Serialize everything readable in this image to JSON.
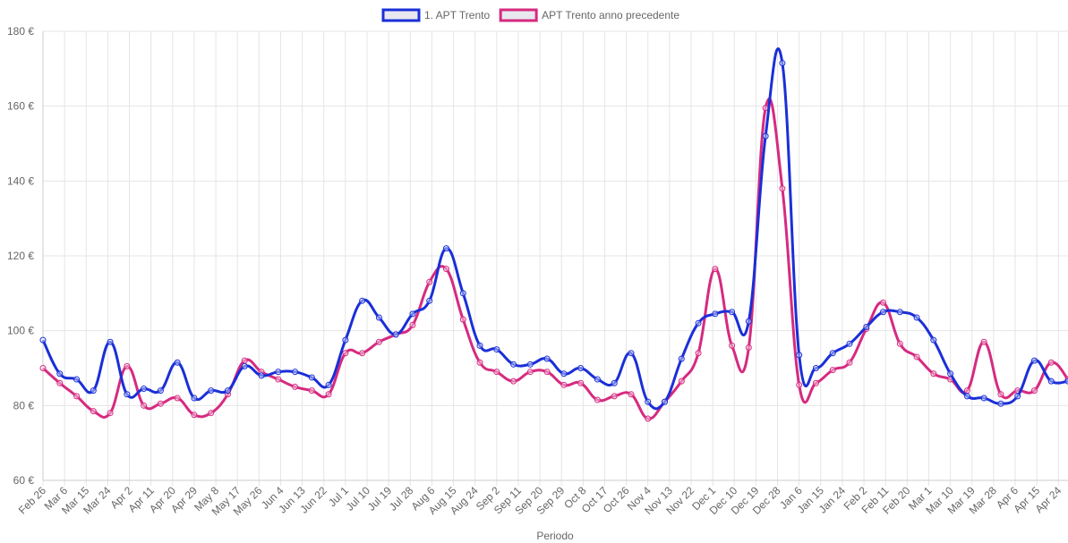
{
  "chart_data": {
    "type": "line",
    "x_label": "Periodo",
    "x": [
      0,
      7,
      14,
      21,
      28,
      35,
      42,
      49,
      56,
      63,
      70,
      77,
      84,
      91,
      98,
      105,
      112,
      119,
      126,
      133,
      140,
      147,
      154,
      161,
      168,
      175,
      182,
      189,
      196,
      203,
      210,
      217,
      224,
      231,
      238,
      245,
      252,
      259,
      266,
      273,
      280,
      287,
      294,
      301,
      308,
      315,
      322,
      329,
      336,
      343,
      350,
      357,
      364,
      371,
      378,
      385,
      392,
      399,
      406,
      413,
      420,
      427
    ],
    "xlim": [
      0,
      427
    ],
    "xticks": [
      {
        "value": 0,
        "label": "Feb 26"
      },
      {
        "value": 9,
        "label": "Mar 6"
      },
      {
        "value": 18,
        "label": "Mar 15"
      },
      {
        "value": 27,
        "label": "Mar 24"
      },
      {
        "value": 36,
        "label": "Apr 2"
      },
      {
        "value": 45,
        "label": "Apr 11"
      },
      {
        "value": 54,
        "label": "Apr 20"
      },
      {
        "value": 63,
        "label": "Apr 29"
      },
      {
        "value": 72,
        "label": "May 8"
      },
      {
        "value": 81,
        "label": "May 17"
      },
      {
        "value": 90,
        "label": "May 26"
      },
      {
        "value": 99,
        "label": "Jun 4"
      },
      {
        "value": 108,
        "label": "Jun 13"
      },
      {
        "value": 117,
        "label": "Jun 22"
      },
      {
        "value": 126,
        "label": "Jul 1"
      },
      {
        "value": 135,
        "label": "Jul 10"
      },
      {
        "value": 144,
        "label": "Jul 19"
      },
      {
        "value": 153,
        "label": "Jul 28"
      },
      {
        "value": 162,
        "label": "Aug 6"
      },
      {
        "value": 171,
        "label": "Aug 15"
      },
      {
        "value": 180,
        "label": "Aug 24"
      },
      {
        "value": 189,
        "label": "Sep 2"
      },
      {
        "value": 198,
        "label": "Sep 11"
      },
      {
        "value": 207,
        "label": "Sep 20"
      },
      {
        "value": 216,
        "label": "Sep 29"
      },
      {
        "value": 225,
        "label": "Oct 8"
      },
      {
        "value": 234,
        "label": "Oct 17"
      },
      {
        "value": 243,
        "label": "Oct 26"
      },
      {
        "value": 252,
        "label": "Nov 4"
      },
      {
        "value": 261,
        "label": "Nov 13"
      },
      {
        "value": 270,
        "label": "Nov 22"
      },
      {
        "value": 279,
        "label": "Dec 1"
      },
      {
        "value": 288,
        "label": "Dec 10"
      },
      {
        "value": 297,
        "label": "Dec 19"
      },
      {
        "value": 306,
        "label": "Dec 28"
      },
      {
        "value": 315,
        "label": "Jan 6"
      },
      {
        "value": 324,
        "label": "Jan 15"
      },
      {
        "value": 333,
        "label": "Jan 24"
      },
      {
        "value": 342,
        "label": "Feb 2"
      },
      {
        "value": 351,
        "label": "Feb 11"
      },
      {
        "value": 360,
        "label": "Feb 20"
      },
      {
        "value": 369,
        "label": "Mar 1"
      },
      {
        "value": 378,
        "label": "Mar 10"
      },
      {
        "value": 387,
        "label": "Mar 19"
      },
      {
        "value": 396,
        "label": "Mar 28"
      },
      {
        "value": 405,
        "label": "Apr 6"
      },
      {
        "value": 414,
        "label": "Apr 15"
      },
      {
        "value": 423,
        "label": "Apr 24"
      }
    ],
    "ylim": [
      60,
      180
    ],
    "yticks": [
      {
        "value": 60,
        "label": "60 €"
      },
      {
        "value": 80,
        "label": "80 €"
      },
      {
        "value": 100,
        "label": "100 €"
      },
      {
        "value": 120,
        "label": "120 €"
      },
      {
        "value": 140,
        "label": "140 €"
      },
      {
        "value": 160,
        "label": "160 €"
      },
      {
        "value": 180,
        "label": "180 €"
      }
    ],
    "grid": true,
    "legend": "top",
    "series": [
      {
        "name": "1. APT Trento",
        "color": "#1a2fd8",
        "values": [
          97.5,
          88.5,
          87,
          84,
          97,
          83,
          84.5,
          84,
          91.5,
          82,
          84,
          84,
          90.5,
          88,
          89,
          89,
          87.5,
          85.5,
          97.5,
          108,
          103.5,
          99,
          104.5,
          108,
          122,
          110,
          96,
          95,
          91,
          91,
          92.5,
          88.5,
          90,
          87,
          86,
          94,
          81,
          81,
          92.5,
          102,
          104.5,
          105,
          102.5,
          152,
          171.5,
          93.5,
          90,
          94,
          96.5,
          101,
          105,
          105,
          103.5,
          97.5,
          88.5,
          82.5,
          82,
          80.5,
          82.5,
          92,
          86.5,
          86.5
        ]
      },
      {
        "name": "APT Trento anno precedente",
        "color": "#d62a80",
        "values": [
          90,
          86,
          82.5,
          78.5,
          78,
          90.5,
          80,
          80.5,
          82,
          77.5,
          78,
          83,
          92,
          89,
          87,
          85,
          84,
          83,
          94,
          94,
          97,
          99,
          101.5,
          113,
          116.5,
          103,
          91.5,
          89,
          86.5,
          89,
          89,
          85.5,
          86,
          81.5,
          82.5,
          83,
          76.5,
          81,
          86.5,
          94,
          116.5,
          96,
          95.5,
          159.5,
          138,
          85.5,
          86,
          89.5,
          91.5,
          100.5,
          107.5,
          96.5,
          93,
          88.5,
          87,
          84,
          97,
          83,
          84,
          84,
          91.5,
          87
        ]
      }
    ]
  }
}
